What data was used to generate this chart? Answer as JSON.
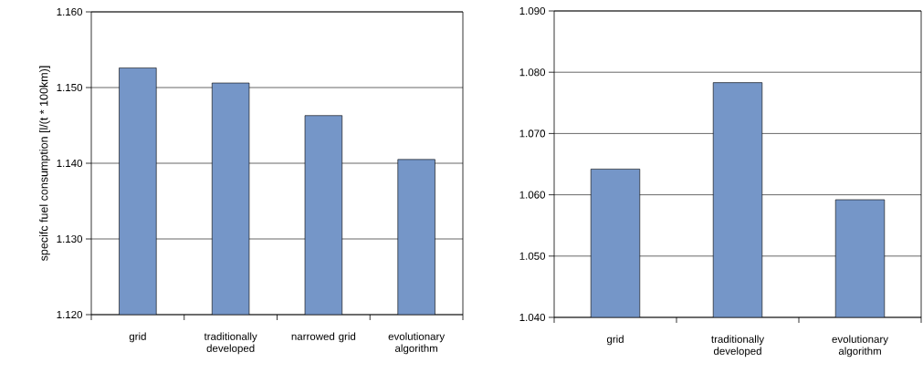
{
  "chart_data": [
    {
      "type": "bar",
      "ylabel": "specifc fuel consumption [l/(t * 100km)]",
      "categories": [
        "grid",
        "traditionally developed",
        "narrowed grid",
        "evolutionary algorithm"
      ],
      "values": [
        1.1526,
        1.1506,
        1.1463,
        1.1405
      ],
      "color": "#7596c8",
      "ylim": [
        1.12,
        1.16
      ],
      "yticks": [
        {
          "value": 1.12,
          "label": "1.120"
        },
        {
          "value": 1.13,
          "label": "1.130"
        },
        {
          "value": 1.14,
          "label": "1.140"
        },
        {
          "value": 1.15,
          "label": "1.150"
        },
        {
          "value": 1.16,
          "label": "1.160"
        }
      ],
      "grid": "y"
    },
    {
      "type": "bar",
      "categories": [
        "grid",
        "traditionally developed",
        "evolutionary algorithm"
      ],
      "values": [
        1.0642,
        1.0783,
        1.0592
      ],
      "color": "#7596c8",
      "ylim": [
        1.04,
        1.09
      ],
      "yticks": [
        {
          "value": 1.04,
          "label": "1.040"
        },
        {
          "value": 1.05,
          "label": "1.050"
        },
        {
          "value": 1.06,
          "label": "1.060"
        },
        {
          "value": 1.07,
          "label": "1.070"
        },
        {
          "value": 1.08,
          "label": "1.080"
        },
        {
          "value": 1.09,
          "label": "1.090"
        }
      ],
      "grid": "y"
    }
  ]
}
